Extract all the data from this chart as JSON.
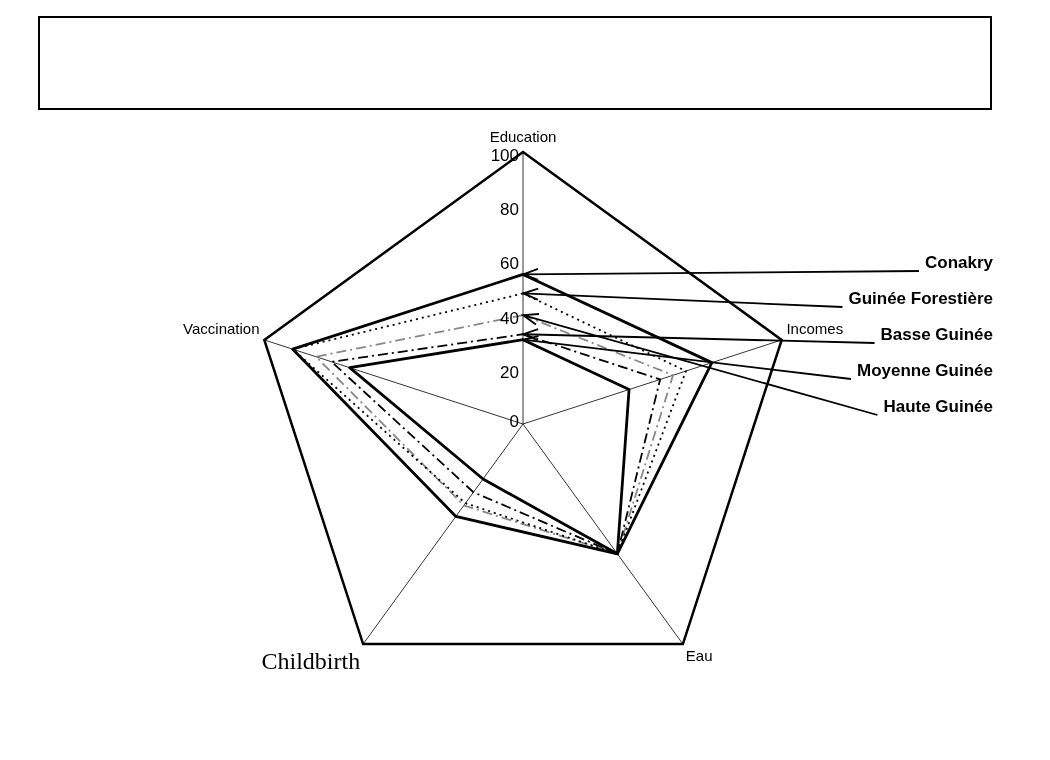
{
  "chart_data": {
    "type": "radar",
    "categories": [
      "Education",
      "Incomes",
      "Eau",
      "Childbirth",
      "Vaccination"
    ],
    "ylim": [
      0,
      100
    ],
    "yticks": [
      0,
      20,
      40,
      60,
      80,
      100
    ],
    "legend": false,
    "marker": "none",
    "series": [
      {
        "name": "Conakry",
        "color": "#000000",
        "line_style": "solid",
        "values": [
          55,
          73,
          59,
          42,
          89
        ]
      },
      {
        "name": "Guinée Forestière",
        "color": "#000000",
        "line_style": "dotted",
        "values": [
          48,
          63,
          59,
          36,
          89
        ]
      },
      {
        "name": "Basse Guinée",
        "color": "#000000",
        "line_style": "dashed",
        "values": [
          33,
          53,
          59,
          31,
          74
        ]
      },
      {
        "name": "Moyenne Guinée",
        "color": "#000000",
        "line_style": "solid",
        "values": [
          31,
          41,
          59,
          25,
          67
        ]
      },
      {
        "name": "Haute Guinée",
        "color": "#888888",
        "line_style": "dashed",
        "values": [
          40,
          58,
          59,
          37,
          80
        ]
      }
    ]
  }
}
